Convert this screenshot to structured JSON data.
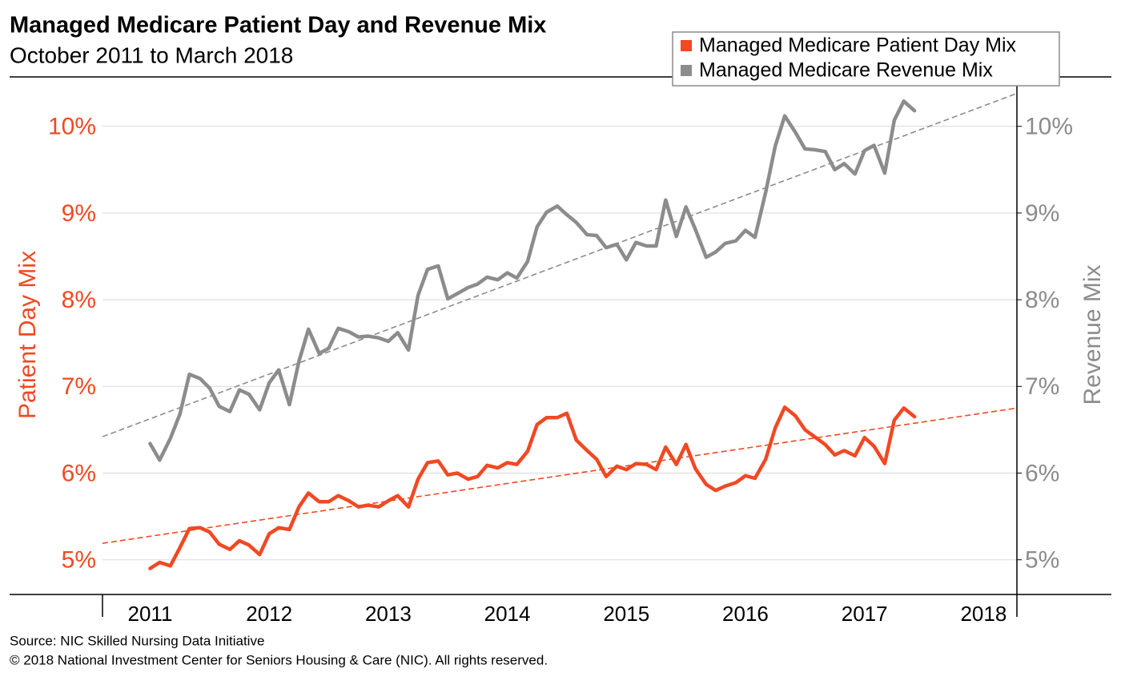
{
  "chart_data": {
    "type": "line",
    "title": "Managed Medicare Patient Day and Revenue Mix",
    "subtitle": "October 2011 to March 2018",
    "ylabel": "Patient Day Mix",
    "y2label": "Revenue Mix",
    "source": "Source: NIC Skilled Nursing Data Initiative",
    "copyright": "© 2018 National Investment Center for Seniors Housing & Care (NIC). All rights reserved.",
    "legend": "top-right",
    "grid": true,
    "xlim": [
      2010.6,
      2018.28
    ],
    "xticks": [
      2011,
      2012,
      2013,
      2014,
      2015,
      2016,
      2017,
      2018
    ],
    "ylim": [
      4.6,
      10.57
    ],
    "yticks": [
      {
        "value": 5,
        "label": "5%"
      },
      {
        "value": 6,
        "label": "6%"
      },
      {
        "value": 7,
        "label": "7%"
      },
      {
        "value": 8,
        "label": "8%"
      },
      {
        "value": 9,
        "label": "9%"
      },
      {
        "value": 10,
        "label": "10%"
      }
    ],
    "y2lim": [
      4.6,
      10.57
    ],
    "y2ticks": [
      {
        "value": 5,
        "label": "5%"
      },
      {
        "value": 6,
        "label": "6%"
      },
      {
        "value": 7,
        "label": "7%"
      },
      {
        "value": 8,
        "label": "8%"
      },
      {
        "value": 9,
        "label": "9%"
      },
      {
        "value": 10,
        "label": "10%"
      }
    ],
    "x": [
      2011.0,
      2011.08,
      2011.17,
      2011.25,
      2011.33,
      2011.42,
      2011.5,
      2011.58,
      2011.67,
      2011.75,
      2011.83,
      2011.92,
      2012.0,
      2012.08,
      2012.17,
      2012.25,
      2012.33,
      2012.42,
      2012.5,
      2012.58,
      2012.67,
      2012.75,
      2012.83,
      2012.92,
      2013.0,
      2013.08,
      2013.17,
      2013.25,
      2013.33,
      2013.42,
      2013.5,
      2013.58,
      2013.67,
      2013.75,
      2013.83,
      2013.92,
      2014.0,
      2014.08,
      2014.17,
      2014.25,
      2014.33,
      2014.42,
      2014.5,
      2014.58,
      2014.67,
      2014.75,
      2014.83,
      2014.92,
      2015.0,
      2015.08,
      2015.17,
      2015.25,
      2015.33,
      2015.42,
      2015.5,
      2015.58,
      2015.67,
      2015.75,
      2015.83,
      2015.92,
      2016.0,
      2016.08,
      2016.17,
      2016.25,
      2016.33,
      2016.42,
      2016.5,
      2016.58,
      2016.67,
      2016.75,
      2016.83,
      2016.92,
      2017.0,
      2017.08,
      2017.17,
      2017.25,
      2017.33,
      2017.42
    ],
    "series": [
      {
        "name": "Managed Medicare Patient Day Mix",
        "color": "#f04923",
        "axis": "y",
        "values": [
          4.9,
          4.97,
          4.93,
          5.14,
          5.36,
          5.37,
          5.32,
          5.18,
          5.12,
          5.22,
          5.17,
          5.06,
          5.3,
          5.37,
          5.35,
          5.61,
          5.77,
          5.67,
          5.67,
          5.74,
          5.68,
          5.61,
          5.63,
          5.61,
          5.68,
          5.74,
          5.61,
          5.93,
          6.12,
          6.14,
          5.98,
          6.0,
          5.93,
          5.96,
          6.09,
          6.06,
          6.12,
          6.1,
          6.25,
          6.56,
          6.64,
          6.64,
          6.69,
          6.38,
          6.26,
          6.16,
          5.96,
          6.08,
          6.04,
          6.11,
          6.1,
          6.04,
          6.3,
          6.1,
          6.33,
          6.05,
          5.87,
          5.8,
          5.85,
          5.89,
          5.97,
          5.94,
          6.16,
          6.52,
          6.76,
          6.66,
          6.5,
          6.42,
          6.33,
          6.21,
          6.26,
          6.2,
          6.41,
          6.31,
          6.11,
          6.61,
          6.75,
          6.65
        ],
        "trend": {
          "x": [
            2010.6,
            2018.28
          ],
          "values": [
            5.19,
            6.75
          ]
        }
      },
      {
        "name": "Managed Medicare Revenue Mix",
        "color": "#8c8c8c",
        "axis": "y2",
        "values": [
          6.34,
          6.15,
          6.4,
          6.68,
          7.14,
          7.09,
          6.98,
          6.77,
          6.71,
          6.96,
          6.91,
          6.73,
          7.04,
          7.19,
          6.79,
          7.29,
          7.66,
          7.38,
          7.44,
          7.67,
          7.63,
          7.57,
          7.58,
          7.56,
          7.52,
          7.62,
          7.42,
          8.05,
          8.35,
          8.39,
          8.01,
          8.07,
          8.14,
          8.18,
          8.26,
          8.23,
          8.31,
          8.25,
          8.44,
          8.84,
          9.01,
          9.08,
          8.98,
          8.89,
          8.75,
          8.74,
          8.6,
          8.64,
          8.46,
          8.66,
          8.62,
          8.62,
          9.15,
          8.73,
          9.07,
          8.81,
          8.49,
          8.55,
          8.65,
          8.68,
          8.8,
          8.72,
          9.24,
          9.77,
          10.12,
          9.93,
          9.74,
          9.73,
          9.71,
          9.5,
          9.57,
          9.45,
          9.72,
          9.78,
          9.46,
          10.07,
          10.29,
          10.18
        ],
        "trend": {
          "x": [
            2010.6,
            2018.28
          ],
          "values": [
            6.42,
            10.38
          ]
        }
      }
    ]
  }
}
